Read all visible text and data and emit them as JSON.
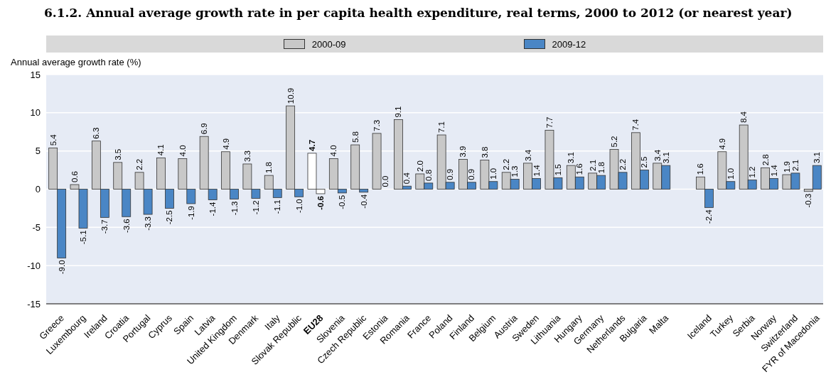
{
  "chart_data": {
    "type": "bar",
    "title": "6.1.2. Annual average growth rate in per capita health expenditure, real terms, 2000 to 2012 (or nearest year)",
    "ylabel": "Annual average growth rate (%)",
    "categories": [
      "Greece",
      "Luxembourg",
      "Ireland",
      "Croatia",
      "Portugal",
      "Cyprus",
      "Spain",
      "Latvia",
      "United Kingdom",
      "Denmark",
      "Italy",
      "Slovak Republic",
      "EU28",
      "Slovenia",
      "Czech Republic",
      "Estonia",
      "Romania",
      "France",
      "Poland",
      "Finland",
      "Belgium",
      "Austria",
      "Sweden",
      "Lithuania",
      "Hungary",
      "Germany",
      "Netherlands",
      "Bulgaria",
      "Malta",
      null,
      "Iceland",
      "Turkey",
      "Serbia",
      "Norway",
      "Switzerland",
      "FYR of Macedonia"
    ],
    "series": [
      {
        "name": "2000-09",
        "color": "#c8c8c8",
        "colors": [
          "#c8c8c8",
          "#c8c8c8",
          "#c8c8c8",
          "#c8c8c8",
          "#c8c8c8",
          "#c8c8c8",
          "#c8c8c8",
          "#c8c8c8",
          "#c8c8c8",
          "#c8c8c8",
          "#c8c8c8",
          "#c8c8c8",
          "#ffffff",
          "#c8c8c8",
          "#c8c8c8",
          "#c8c8c8",
          "#c8c8c8",
          "#c8c8c8",
          "#c8c8c8",
          "#c8c8c8",
          "#c8c8c8",
          "#c8c8c8",
          "#c8c8c8",
          "#c8c8c8",
          "#c8c8c8",
          "#c8c8c8",
          "#c8c8c8",
          "#c8c8c8",
          "#c8c8c8",
          null,
          "#c8c8c8",
          "#c8c8c8",
          "#c8c8c8",
          "#c8c8c8",
          "#c8c8c8",
          "#c8c8c8"
        ],
        "values": [
          5.4,
          0.6,
          6.3,
          3.5,
          2.2,
          4.1,
          4.0,
          6.9,
          4.9,
          3.3,
          1.8,
          10.9,
          4.7,
          4.0,
          5.8,
          7.3,
          9.1,
          2.0,
          7.1,
          3.9,
          3.8,
          2.2,
          3.4,
          7.7,
          3.1,
          2.1,
          5.2,
          7.4,
          3.4,
          null,
          1.6,
          4.9,
          8.4,
          2.8,
          1.9,
          -0.3
        ],
        "value_labels": [
          "5.4",
          "0.6",
          "6.3",
          "3.5",
          "2.2",
          "4.1",
          "4.0",
          "6.9",
          "4.9",
          "3.3",
          "1.8",
          "10.9",
          "4.7",
          "4.0",
          "5.8",
          "7.3",
          "9.1",
          "2.0",
          "7.1",
          "3.9",
          "3.8",
          "2.2",
          "3.4",
          "7.7",
          "3.1",
          "2.1",
          "5.2",
          "7.4",
          "3.4",
          null,
          "1.6",
          "4.9",
          "8.4",
          "2.8",
          "1.9",
          "-0.3"
        ]
      },
      {
        "name": "2009-12",
        "color": "#4a86c5",
        "colors": [
          "#4a86c5",
          "#4a86c5",
          "#4a86c5",
          "#4a86c5",
          "#4a86c5",
          "#4a86c5",
          "#4a86c5",
          "#4a86c5",
          "#4a86c5",
          "#4a86c5",
          "#4a86c5",
          "#4a86c5",
          "#ffffff",
          "#4a86c5",
          "#4a86c5",
          "#4a86c5",
          "#4a86c5",
          "#4a86c5",
          "#4a86c5",
          "#4a86c5",
          "#4a86c5",
          "#4a86c5",
          "#4a86c5",
          "#4a86c5",
          "#4a86c5",
          "#4a86c5",
          "#4a86c5",
          "#4a86c5",
          "#4a86c5",
          null,
          "#4a86c5",
          "#4a86c5",
          "#4a86c5",
          "#4a86c5",
          "#4a86c5",
          "#4a86c5"
        ],
        "values": [
          -9.0,
          -5.1,
          -3.7,
          -3.6,
          -3.3,
          -2.5,
          -1.9,
          -1.4,
          -1.3,
          -1.2,
          -1.1,
          -1.0,
          -0.6,
          -0.5,
          -0.4,
          0.0,
          0.4,
          0.8,
          0.9,
          0.9,
          1.0,
          1.3,
          1.4,
          1.5,
          1.6,
          1.8,
          2.2,
          2.5,
          3.1,
          null,
          -2.4,
          1.0,
          1.2,
          1.4,
          2.1,
          3.1
        ],
        "value_labels": [
          "-9.0",
          "-5.1",
          "-3.7",
          "-3.6",
          "-3.3",
          "-2.5",
          "-1.9",
          "-1.4",
          "-1.3",
          "-1.2",
          "-1.1",
          "-1.0",
          "-0.6",
          "-0.5",
          "-0.4",
          "0.0",
          "0.4",
          "0.8",
          "0.9",
          "0.9",
          "1.0",
          "1.3",
          "1.4",
          "1.5",
          "1.6",
          "1.8",
          "2.2",
          "2.5",
          "3.1",
          null,
          "-2.4",
          "1.0",
          "1.2",
          "1.4",
          "2.1",
          "3.1"
        ]
      }
    ],
    "ylim": [
      -15,
      15
    ],
    "yticks": [
      -15,
      -10,
      -5,
      0,
      5,
      10,
      15
    ],
    "grid": "y",
    "legend": "top"
  }
}
